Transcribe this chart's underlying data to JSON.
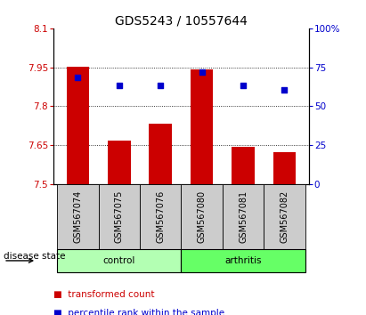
{
  "title": "GDS5243 / 10557644",
  "samples": [
    "GSM567074",
    "GSM567075",
    "GSM567076",
    "GSM567080",
    "GSM567081",
    "GSM567082"
  ],
  "bar_values": [
    7.951,
    7.668,
    7.732,
    7.943,
    7.644,
    7.622
  ],
  "dot_values_left": [
    7.912,
    7.882,
    7.882,
    7.932,
    7.882,
    7.862
  ],
  "ymin": 7.5,
  "ymax": 8.1,
  "y_ticks": [
    7.5,
    7.65,
    7.8,
    7.95,
    8.1
  ],
  "y_tick_labels": [
    "7.5",
    "7.65",
    "7.8",
    "7.95",
    "8.1"
  ],
  "y2_ticks": [
    0,
    25,
    50,
    75,
    100
  ],
  "y2_tick_labels": [
    "0",
    "25",
    "50",
    "75",
    "100%"
  ],
  "bar_color": "#cc0000",
  "dot_color": "#0000cc",
  "left_tick_color": "#cc0000",
  "right_tick_color": "#0000cc",
  "group_labels": [
    "control",
    "arthritis"
  ],
  "group_ranges": [
    [
      0,
      3
    ],
    [
      3,
      6
    ]
  ],
  "group_colors": [
    "#b3ffb3",
    "#66ff66"
  ],
  "disease_label": "disease state",
  "legend_bar_label": "transformed count",
  "legend_dot_label": "percentile rank within the sample",
  "bar_width": 0.55,
  "sample_bg_color": "#cccccc",
  "title_fontsize": 10,
  "tick_fontsize": 7.5,
  "label_fontsize": 7.5,
  "sample_fontsize": 7
}
